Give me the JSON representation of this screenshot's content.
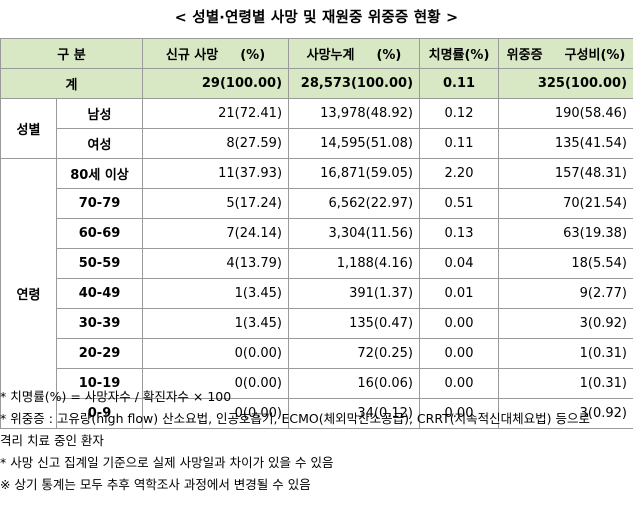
{
  "title": "< 성별·연령별 사망 및 재원중 위중증 현황 >",
  "headers": {
    "category": "구 분",
    "new_deaths": "신규 사망",
    "new_deaths_unit": "(%)",
    "cum_deaths": "사망누계",
    "cum_deaths_unit": "(%)",
    "fatality": "치명률(%)",
    "critical": "위중증",
    "critical_unit": "구성비(%)"
  },
  "total": {
    "label": "계",
    "new_deaths": "29(100.00)",
    "cum_deaths": "28,573(100.00)",
    "fatality": "0.11",
    "critical": "325(100.00)"
  },
  "sex": {
    "label": "성별",
    "rows": [
      {
        "label": "남성",
        "new_deaths": "21(72.41)",
        "cum_deaths": "13,978(48.92)",
        "fatality": "0.12",
        "critical": "190(58.46)"
      },
      {
        "label": "여성",
        "new_deaths": "8(27.59)",
        "cum_deaths": "14,595(51.08)",
        "fatality": "0.11",
        "critical": "135(41.54)"
      }
    ]
  },
  "age": {
    "label": "연령",
    "rows": [
      {
        "label": "80세 이상",
        "new_deaths": "11(37.93)",
        "cum_deaths": "16,871(59.05)",
        "fatality": "2.20",
        "critical": "157(48.31)"
      },
      {
        "label": "70-79",
        "new_deaths": "5(17.24)",
        "cum_deaths": "6,562(22.97)",
        "fatality": "0.51",
        "critical": "70(21.54)"
      },
      {
        "label": "60-69",
        "new_deaths": "7(24.14)",
        "cum_deaths": "3,304(11.56)",
        "fatality": "0.13",
        "critical": "63(19.38)"
      },
      {
        "label": "50-59",
        "new_deaths": "4(13.79)",
        "cum_deaths": "1,188(4.16)",
        "fatality": "0.04",
        "critical": "18(5.54)"
      },
      {
        "label": "40-49",
        "new_deaths": "1(3.45)",
        "cum_deaths": "391(1.37)",
        "fatality": "0.01",
        "critical": "9(2.77)"
      },
      {
        "label": "30-39",
        "new_deaths": "1(3.45)",
        "cum_deaths": "135(0.47)",
        "fatality": "0.00",
        "critical": "3(0.92)"
      },
      {
        "label": "20-29",
        "new_deaths": "0(0.00)",
        "cum_deaths": "72(0.25)",
        "fatality": "0.00",
        "critical": "1(0.31)"
      },
      {
        "label": "10-19",
        "new_deaths": "0(0.00)",
        "cum_deaths": "16(0.06)",
        "fatality": "0.00",
        "critical": "1(0.31)"
      },
      {
        "label": "0-9",
        "new_deaths": "0(0.00)",
        "cum_deaths": "34(0.12)",
        "fatality": "0.00",
        "critical": "3(0.92)"
      }
    ]
  },
  "notes": [
    "* 치명률(%) = 사망자수 / 확진자수 × 100",
    "* 위중증 : 고유량(high flow) 산소요법, 인공호흡기, ECMO(체외막산소공급), CRRT(지속적신대체요법) 등으로",
    "격리 치료 중인 환자",
    "* 사망 신고 집계일 기준으로 실제 사망일과 차이가 있을 수 있음",
    "※ 상기 통계는 모두 추후 역학조사 과정에서 변경될 수 있음"
  ]
}
